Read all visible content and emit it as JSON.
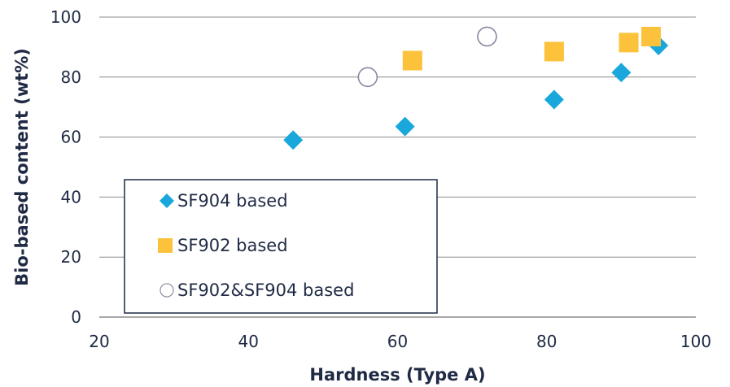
{
  "chart_data": {
    "type": "scatter",
    "xlabel": "Hardness (Type A)",
    "ylabel": "Bio-based content (wt%)",
    "xlim": [
      20,
      100
    ],
    "ylim": [
      0,
      100
    ],
    "xticks": [
      "20",
      "40",
      "60",
      "80",
      "100"
    ],
    "yticks": [
      "0",
      "20",
      "40",
      "60",
      "80",
      "100"
    ],
    "grid": "horizontal",
    "legend_placement": "lower-left",
    "series": [
      {
        "name": "SF904 based",
        "marker": "diamond",
        "color": "#1aa8dc",
        "points": [
          {
            "x": 46,
            "y": 59
          },
          {
            "x": 61,
            "y": 63.5
          },
          {
            "x": 81,
            "y": 72.5
          },
          {
            "x": 90,
            "y": 81.5
          },
          {
            "x": 95,
            "y": 90.5
          }
        ]
      },
      {
        "name": "SF902 based",
        "marker": "square",
        "color": "#fcc23c",
        "points": [
          {
            "x": 62,
            "y": 85.5
          },
          {
            "x": 81,
            "y": 88.5
          },
          {
            "x": 91,
            "y": 91.5
          },
          {
            "x": 94,
            "y": 93.5
          }
        ]
      },
      {
        "name": "SF902&SF904 based",
        "marker": "circle-open",
        "color": "#8a86a0",
        "points": [
          {
            "x": 56,
            "y": 80
          },
          {
            "x": 72,
            "y": 93.5
          }
        ]
      }
    ]
  }
}
